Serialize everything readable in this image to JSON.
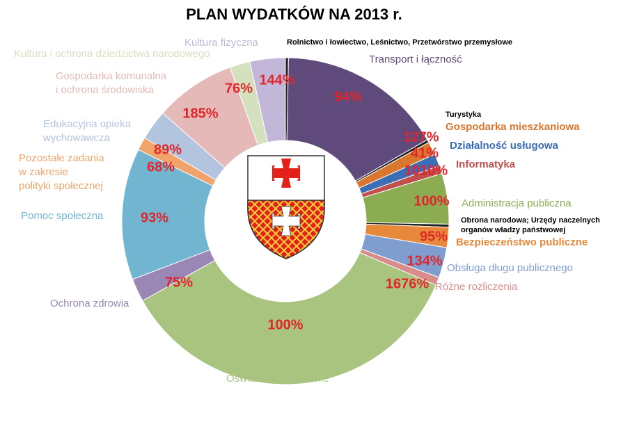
{
  "chart_data": {
    "type": "donut",
    "title": "PLAN WYDATKÓW NA 2013 r.",
    "categories": [
      "Rolnictwo i łowiectwo, Leśnictwo, Przetwórstwo przemysłowe",
      "Transport i łączność",
      "Turystyka",
      "Gospodarka mieszkaniowa",
      "Działalność usługowa",
      "Informatyka",
      "Administracja publiczna",
      "Obrona narodowa; Urzędy naczelnych\norganów władzy państwowej",
      "Bezpieczeństwo publiczne",
      "Obsługa długu publicznego",
      "Różne rozliczenia",
      "Oświata i wychowanie",
      "Ochrona zdrowia",
      "Pomoc społeczna",
      "Pozostałe zadania\nw zakresie\npolityki społecznej",
      "Edukacyjna opieka\nwychowawcza",
      "Gospodarka komunalna\ni ochrona środowiska",
      "Kultura i ochrona dziedzictwa narodowego",
      "Kultura fizyczna"
    ],
    "values": [
      0.3,
      16.4,
      0.3,
      1.3,
      1.2,
      0.8,
      5,
      0.3,
      2,
      3,
      0.8,
      35.5,
      2.3,
      13,
      1.3,
      3,
      8,
      2,
      3.5
    ],
    "percent_labels": [
      null,
      "94%",
      null,
      "127%",
      "41%",
      "1010%",
      "100%",
      null,
      "95%",
      "134%",
      "1676%",
      "100%",
      "75%",
      "93%",
      "68%",
      "89%",
      "185%",
      "76%",
      "144%"
    ],
    "colors": [
      "#222222",
      "#5f4a7b",
      "#222222",
      "#d9772f",
      "#3b6eb5",
      "#c0504d",
      "#8cac52",
      "#222222",
      "#e8883a",
      "#7f9dcf",
      "#d98c8c",
      "#a9c47f",
      "#9b87b5",
      "#72b5d1",
      "#f0a46c",
      "#b3c4de",
      "#e5b9b7",
      "#d4e1bf",
      "#c2b7d8"
    ]
  }
}
